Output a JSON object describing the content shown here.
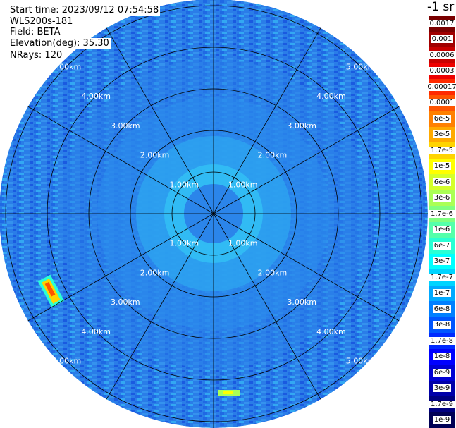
{
  "header": {
    "start_time": "Start time: 2023/09/12 07:54:58",
    "instrument": "WLS200s-181",
    "field": "Field: BETA",
    "elevation": "Elevation(deg): 35.30",
    "nrays": "NRays: 120"
  },
  "colorbar": {
    "unit": "-1 sr",
    "entries": [
      {
        "label": "0.0017",
        "color": "#7a0000"
      },
      {
        "label": "0.001",
        "color": "#a00000"
      },
      {
        "label": "0.0006",
        "color": "#c80000"
      },
      {
        "label": "0.0003",
        "color": "#ee0000"
      },
      {
        "label": "0.00017",
        "color": "#ff2a00"
      },
      {
        "label": "0.0001",
        "color": "#ff5500"
      },
      {
        "label": "6e-5",
        "color": "#ff8000"
      },
      {
        "label": "3e-5",
        "color": "#ffaa00"
      },
      {
        "label": "1.7e-5",
        "color": "#ffd400"
      },
      {
        "label": "1e-5",
        "color": "#ffff00"
      },
      {
        "label": "6e-6",
        "color": "#d4ff2a"
      },
      {
        "label": "3e-6",
        "color": "#aaff55"
      },
      {
        "label": "1.7e-6",
        "color": "#80ff80"
      },
      {
        "label": "1e-6",
        "color": "#55ffaa"
      },
      {
        "label": "6e-7",
        "color": "#2affd4"
      },
      {
        "label": "3e-7",
        "color": "#00ffff"
      },
      {
        "label": "1.7e-7",
        "color": "#00d4ff"
      },
      {
        "label": "1e-7",
        "color": "#00aaff"
      },
      {
        "label": "6e-8",
        "color": "#0080ff"
      },
      {
        "label": "3e-8",
        "color": "#0055ff"
      },
      {
        "label": "1.7e-8",
        "color": "#002aff"
      },
      {
        "label": "1e-8",
        "color": "#0000ff"
      },
      {
        "label": "6e-9",
        "color": "#0000d4"
      },
      {
        "label": "3e-9",
        "color": "#0000aa"
      },
      {
        "label": "1.7e-9",
        "color": "#000080"
      },
      {
        "label": "1e-9",
        "color": "#000055"
      }
    ]
  },
  "range_rings": {
    "labels": [
      "1.00km",
      "2.00km",
      "3.00km",
      "4.00km",
      "5.00km"
    ]
  },
  "colors": {
    "field_base": "#2a7de8",
    "field_light": "#33c5f5",
    "field_dark": "#1a5ae0",
    "grid": "#000000"
  }
}
